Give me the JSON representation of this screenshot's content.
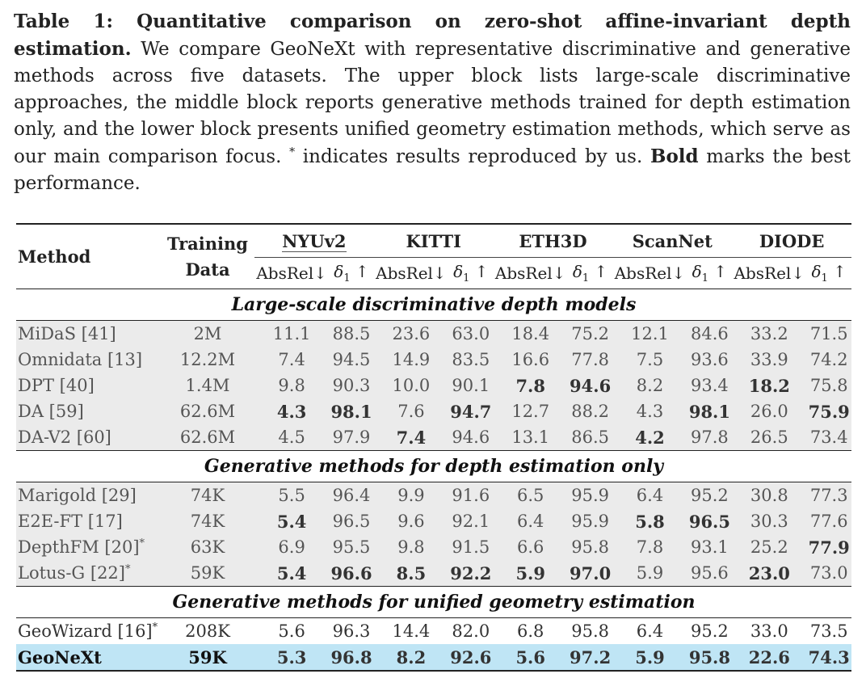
{
  "caption": {
    "label": "Table 1: Quantitative comparison on zero-shot affine-invariant depth estimation.",
    "text_1": " We compare GeoNeXt with representative discriminative and generative methods across five datasets. The upper block lists large-scale discriminative approaches, the middle block reports generative methods trained for depth estimation only, and the lower block presents unified geometry estimation methods, which serve as our main comparison focus. ",
    "asterisk": "*",
    "text_2": " indicates results reproduced by us. ",
    "bold_word": "Bold",
    "text_3": " marks the best performance."
  },
  "header": {
    "method": "Method",
    "training_line1": "Training",
    "training_line2": "Data",
    "datasets": [
      "NYUv2",
      "KITTI",
      "ETH3D",
      "ScanNet",
      "DIODE"
    ],
    "metric_absrel": "AbsRel↓",
    "metric_delta_symbol": "δ",
    "metric_delta_sub": "1",
    "metric_delta_arrow": " ↑"
  },
  "sections": [
    {
      "title": "Large-scale discriminative depth models",
      "style": "gray",
      "rows": [
        {
          "method": "MiDaS [41]",
          "sup": "",
          "training": "2M",
          "values": [
            "11.1",
            "88.5",
            "23.6",
            "63.0",
            "18.4",
            "75.2",
            "12.1",
            "84.6",
            "33.2",
            "71.5"
          ],
          "bold": []
        },
        {
          "method": "Omnidata [13]",
          "sup": "",
          "training": "12.2M",
          "values": [
            "7.4",
            "94.5",
            "14.9",
            "83.5",
            "16.6",
            "77.8",
            "7.5",
            "93.6",
            "33.9",
            "74.2"
          ],
          "bold": []
        },
        {
          "method": "DPT [40]",
          "sup": "",
          "training": "1.4M",
          "values": [
            "9.8",
            "90.3",
            "10.0",
            "90.1",
            "7.8",
            "94.6",
            "8.2",
            "93.4",
            "18.2",
            "75.8"
          ],
          "bold": [
            4,
            5,
            8
          ]
        },
        {
          "method": "DA [59]",
          "sup": "",
          "training": "62.6M",
          "values": [
            "4.3",
            "98.1",
            "7.6",
            "94.7",
            "12.7",
            "88.2",
            "4.3",
            "98.1",
            "26.0",
            "75.9"
          ],
          "bold": [
            0,
            1,
            3,
            7,
            9
          ]
        },
        {
          "method": "DA-V2 [60]",
          "sup": "",
          "training": "62.6M",
          "values": [
            "4.5",
            "97.9",
            "7.4",
            "94.6",
            "13.1",
            "86.5",
            "4.2",
            "97.8",
            "26.5",
            "73.4"
          ],
          "bold": [
            2,
            6
          ]
        }
      ]
    },
    {
      "title": "Generative methods for depth estimation only",
      "style": "gray",
      "rows": [
        {
          "method": "Marigold [29]",
          "sup": "",
          "training": "74K",
          "values": [
            "5.5",
            "96.4",
            "9.9",
            "91.6",
            "6.5",
            "95.9",
            "6.4",
            "95.2",
            "30.8",
            "77.3"
          ],
          "bold": []
        },
        {
          "method": "E2E-FT [17]",
          "sup": "",
          "training": "74K",
          "values": [
            "5.4",
            "96.5",
            "9.6",
            "92.1",
            "6.4",
            "95.9",
            "5.8",
            "96.5",
            "30.3",
            "77.6"
          ],
          "bold": [
            0,
            6,
            7
          ]
        },
        {
          "method": "DepthFM [20]",
          "sup": "*",
          "training": "63K",
          "values": [
            "6.9",
            "95.5",
            "9.8",
            "91.5",
            "6.6",
            "95.8",
            "7.8",
            "93.1",
            "25.2",
            "77.9"
          ],
          "bold": [
            9
          ]
        },
        {
          "method": "Lotus-G [22]",
          "sup": "*",
          "training": "59K",
          "values": [
            "5.4",
            "96.6",
            "8.5",
            "92.2",
            "5.9",
            "97.0",
            "5.9",
            "95.6",
            "23.0",
            "73.0"
          ],
          "bold": [
            0,
            1,
            2,
            3,
            4,
            5,
            8
          ]
        }
      ]
    },
    {
      "title": "Generative methods for unified geometry estimation",
      "style": "white",
      "rows": [
        {
          "method": "GeoWizard [16]",
          "sup": "*",
          "training": "208K",
          "values": [
            "5.6",
            "96.3",
            "14.4",
            "82.0",
            "6.8",
            "95.8",
            "6.4",
            "95.2",
            "33.0",
            "73.5"
          ],
          "bold": [],
          "highlight": false
        },
        {
          "method": "GeoNeXt",
          "sup": "",
          "training": "59K",
          "values": [
            "5.3",
            "96.8",
            "8.2",
            "92.6",
            "5.6",
            "97.2",
            "5.9",
            "95.8",
            "22.6",
            "74.3"
          ],
          "bold": [
            0,
            1,
            2,
            3,
            4,
            5,
            6,
            7,
            8,
            9
          ],
          "highlight": true
        }
      ]
    }
  ]
}
